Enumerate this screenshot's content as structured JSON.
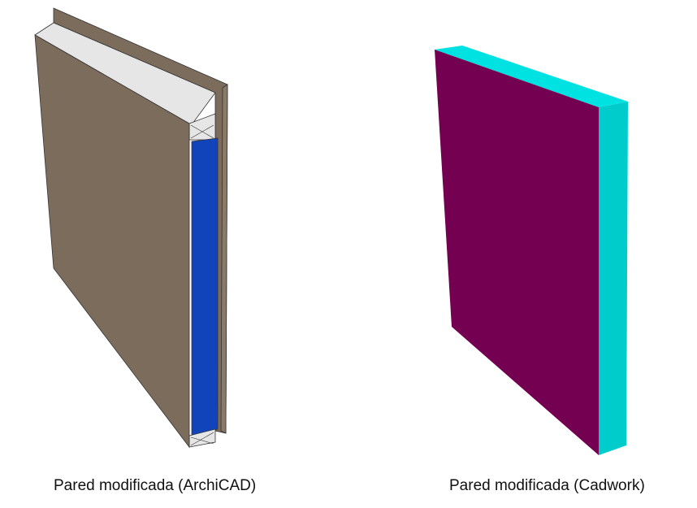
{
  "figures": [
    {
      "caption": "Pared modificada (ArchiCAD)",
      "colors": {
        "panel": "#7c6c5c",
        "panel_edge": "#8a7a68",
        "top_cap": "#e6e6e6",
        "insulation": "#1144bb",
        "outline": "#333333"
      }
    },
    {
      "caption": "Pared modificada (Cadwork)",
      "colors": {
        "front_face": "#730050",
        "side_face": "#00cccc",
        "top_face": "#00e2e2"
      }
    }
  ]
}
